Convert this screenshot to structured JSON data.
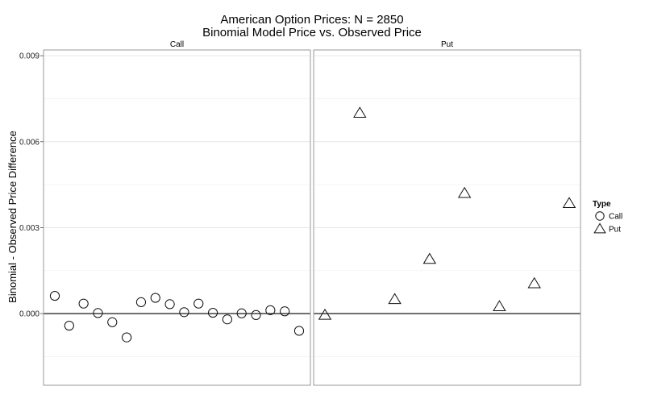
{
  "chart_data": {
    "type": "scatter",
    "title": "American Option Prices: N = 2850",
    "subtitle": "Binomial Model Price vs. Observed Price",
    "ylabel": "Binomial - Observed Price Difference",
    "xlabel": "",
    "ylim": [
      -0.0025,
      0.0092
    ],
    "yticks": [
      0.0,
      0.003,
      0.006,
      0.009
    ],
    "ytick_labels": [
      "0.000",
      "0.003",
      "0.006",
      "0.009"
    ],
    "grid": true,
    "legend_position": "right",
    "legend": {
      "title": "Type",
      "items": [
        {
          "label": "Call",
          "shape": "circle"
        },
        {
          "label": "Put",
          "shape": "triangle"
        }
      ]
    },
    "panels": [
      {
        "label": "Call",
        "shape": "circle",
        "points": [
          {
            "x": 1,
            "y": 0.00062
          },
          {
            "x": 2,
            "y": -0.00042
          },
          {
            "x": 3,
            "y": 0.00035
          },
          {
            "x": 4,
            "y": 2e-05
          },
          {
            "x": 5,
            "y": -0.0003
          },
          {
            "x": 6,
            "y": -0.00083
          },
          {
            "x": 7,
            "y": 0.0004
          },
          {
            "x": 8,
            "y": 0.00055
          },
          {
            "x": 9,
            "y": 0.00033
          },
          {
            "x": 10,
            "y": 5e-05
          },
          {
            "x": 11,
            "y": 0.00035
          },
          {
            "x": 12,
            "y": 3e-05
          },
          {
            "x": 13,
            "y": -0.0002
          },
          {
            "x": 14,
            "y": 1e-05
          },
          {
            "x": 15,
            "y": -5e-05
          },
          {
            "x": 16,
            "y": 0.00012
          },
          {
            "x": 17,
            "y": 8e-05
          },
          {
            "x": 18,
            "y": -0.0006
          }
        ]
      },
      {
        "label": "Put",
        "shape": "triangle",
        "points": [
          {
            "x": 1,
            "y": -5e-05
          },
          {
            "x": 2,
            "y": 0.007
          },
          {
            "x": 3,
            "y": 0.0005
          },
          {
            "x": 4,
            "y": 0.0019
          },
          {
            "x": 5,
            "y": 0.0042
          },
          {
            "x": 6,
            "y": 0.00025
          },
          {
            "x": 7,
            "y": 0.00105
          },
          {
            "x": 8,
            "y": 0.00385
          }
        ]
      }
    ]
  }
}
